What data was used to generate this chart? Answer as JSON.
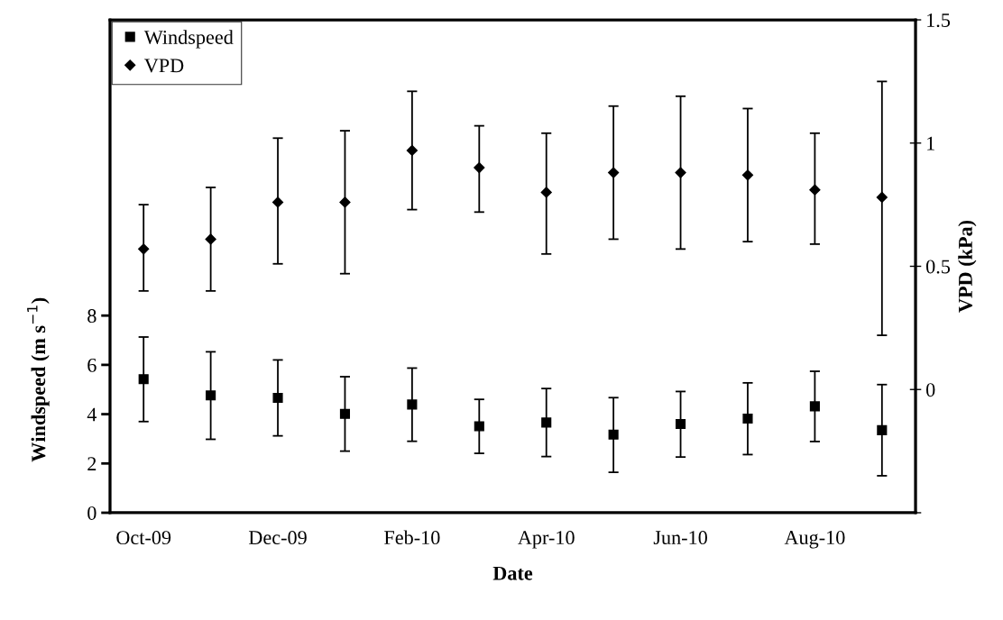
{
  "chart_data": {
    "type": "scatter",
    "xlabel": "Date",
    "ylabel": "Windspeed (m s$^{−1}$)",
    "y2label": "VPD (kPa)",
    "categories": [
      "Oct-09",
      null,
      "Dec-09",
      null,
      "Feb-10",
      null,
      "Apr-10",
      null,
      "Jun-10",
      null,
      "Aug-10",
      null
    ],
    "series": [
      {
        "name": "Windspeed",
        "color": "#000000",
        "marker": "square",
        "values": [
          5.42,
          4.76,
          4.66,
          4.01,
          4.39,
          3.51,
          3.66,
          3.17,
          3.6,
          3.82,
          4.32,
          3.35
        ],
        "errors": [
          [
            3.7,
            7.13
          ],
          [
            2.98,
            6.53
          ],
          [
            3.12,
            6.2
          ],
          [
            2.5,
            5.52
          ],
          [
            2.9,
            5.87
          ],
          [
            2.41,
            4.6
          ],
          [
            2.28,
            5.04
          ],
          [
            1.64,
            4.67
          ],
          [
            2.26,
            4.92
          ],
          [
            2.36,
            5.27
          ],
          [
            2.89,
            5.74
          ],
          [
            1.5,
            5.2
          ]
        ]
      },
      {
        "name": "VPD",
        "color": "#000000",
        "marker": "diamond",
        "axis": "y2",
        "values": [
          0.57,
          0.61,
          0.76,
          0.76,
          0.97,
          0.9,
          0.8,
          0.88,
          0.88,
          0.87,
          0.81,
          0.78
        ],
        "errors": [
          [
            0.4,
            0.75
          ],
          [
            0.4,
            0.82
          ],
          [
            0.51,
            1.02
          ],
          [
            0.47,
            1.05
          ],
          [
            0.73,
            1.21
          ],
          [
            0.72,
            1.07
          ],
          [
            0.55,
            1.04
          ],
          [
            0.61,
            1.15
          ],
          [
            0.57,
            1.19
          ],
          [
            0.6,
            1.14
          ],
          [
            0.59,
            1.04
          ],
          [
            0.22,
            1.25
          ]
        ]
      }
    ],
    "ylim": [
      0,
      20
    ],
    "yticks": [
      0,
      2,
      4,
      6,
      8
    ],
    "y2lim": [
      -0.5,
      1.5
    ],
    "y2ticks": [
      {
        "value": -0.5,
        "label": null
      },
      0,
      0.5,
      1,
      1.5
    ],
    "legend": "top left",
    "grid": false
  }
}
